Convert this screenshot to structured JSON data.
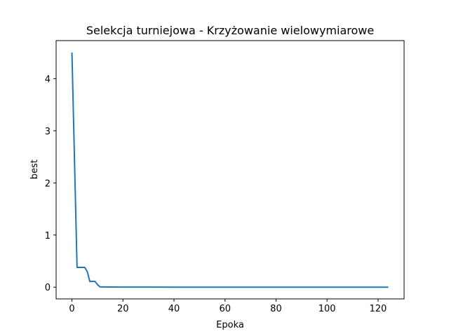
{
  "chart_data": {
    "type": "line",
    "title": "Selekcja turniejowa - Krzyżowanie wielowymiarowe",
    "xlabel": "Epoka",
    "ylabel": "best",
    "xlim": [
      -6.2,
      130.2
    ],
    "ylim": [
      -0.225,
      4.73
    ],
    "xticks": [
      0,
      20,
      40,
      60,
      80,
      100,
      120
    ],
    "yticks": [
      0,
      1,
      2,
      3,
      4
    ],
    "grid": false,
    "line_color": "#1f77b4",
    "series": [
      {
        "x": [
          0,
          2,
          3,
          4,
          5,
          6,
          7,
          8,
          9,
          10,
          11,
          12,
          15,
          20,
          30,
          60,
          90,
          124
        ],
        "y": [
          4.5,
          0.38,
          0.38,
          0.38,
          0.38,
          0.3,
          0.11,
          0.11,
          0.11,
          0.05,
          0.005,
          0.005,
          0.003,
          0.002,
          0.001,
          0.0,
          0.0,
          0.0
        ]
      }
    ]
  }
}
